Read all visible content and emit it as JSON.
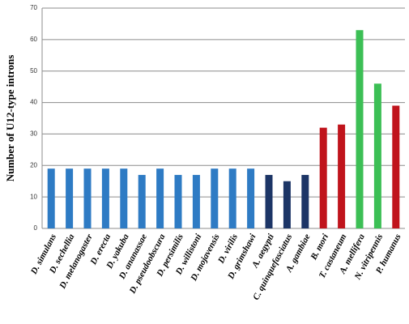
{
  "chart_data": {
    "type": "bar",
    "y_label": "Number of U12-type introns",
    "categories": [
      "D. simulans",
      "D. sechellia",
      "D. melanogaster",
      "D. erecta",
      "D. yakuba",
      "D. ananassae",
      "D. pseudoobscura",
      "D. persimilis",
      "D. willistoni",
      "D. mojavensis",
      "D. virilis",
      "D. grimshawi",
      "A. aegypti",
      "C. quinquefasciatus",
      "A. gambiae",
      "B. mori",
      "T. castaneum",
      "A. mellifera",
      "N. vitripennis",
      "P. humanus"
    ],
    "values": [
      19,
      19,
      19,
      19,
      19,
      17,
      19,
      17,
      17,
      19,
      19,
      19,
      17,
      15,
      17,
      32,
      33,
      63,
      46,
      39
    ],
    "colors": [
      "#2e7bc4",
      "#2e7bc4",
      "#2e7bc4",
      "#2e7bc4",
      "#2e7bc4",
      "#2e7bc4",
      "#2e7bc4",
      "#2e7bc4",
      "#2e7bc4",
      "#2e7bc4",
      "#2e7bc4",
      "#2e7bc4",
      "#1c3566",
      "#1c3566",
      "#1c3566",
      "#c0141c",
      "#c0141c",
      "#3cbf55",
      "#3cbf55",
      "#c0141c"
    ],
    "ylim": [
      0,
      70
    ],
    "yticks": [
      0,
      10,
      20,
      30,
      40,
      50,
      60,
      70
    ],
    "grid": true
  }
}
